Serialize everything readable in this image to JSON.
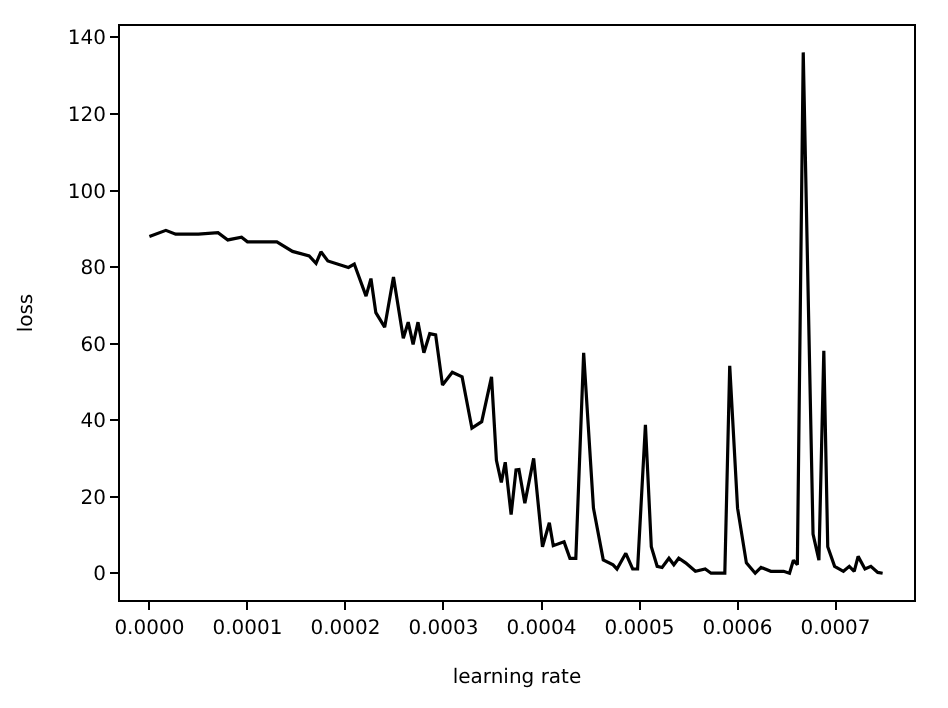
{
  "chart_data": {
    "type": "line",
    "xlabel": "learning rate",
    "ylabel": "loss",
    "x": [
      0.0,
      1.68e-05,
      2.68e-05,
      5e-05,
      7e-05,
      8e-05,
      9.4e-05,
      0.0001,
      0.00013,
      0.000146,
      0.000163,
      0.00017,
      0.000175,
      0.000182,
      0.000203,
      0.000209,
      0.000221,
      0.000226,
      0.000231,
      0.00024,
      0.000249,
      0.000259,
      0.000264,
      0.000269,
      0.000274,
      0.00028,
      0.000286,
      0.000292,
      0.000299,
      0.000309,
      0.000319,
      0.000329,
      0.000339,
      0.000349,
      0.000354,
      0.000359,
      0.000363,
      0.000369,
      0.000374,
      0.000377,
      0.000383,
      0.000392,
      0.000401,
      0.000408,
      0.000412,
      0.000423,
      0.000429,
      0.000435,
      0.000443,
      0.000453,
      0.000463,
      0.000473,
      0.000477,
      0.000486,
      0.000493,
      0.000498,
      0.000506,
      0.000512,
      0.000518,
      0.000523,
      0.00053,
      0.000535,
      0.00054,
      0.000547,
      0.000557,
      0.000567,
      0.000573,
      0.000587,
      0.000592,
      0.0006,
      0.000609,
      0.000618,
      0.000624,
      0.000634,
      0.000647,
      0.000653,
      0.000657,
      0.000661,
      0.000667,
      0.000677,
      0.000683,
      0.000688,
      0.000692,
      0.000699,
      0.000708,
      0.000714,
      0.000719,
      0.000723,
      0.00073,
      0.000736,
      0.000743,
      0.000748
    ],
    "series": [
      {
        "color": "#000000",
        "values": [
          88,
          89.6,
          88.6,
          88.6,
          89,
          87.1,
          87.8,
          86.6,
          86.6,
          84.1,
          82.9,
          81,
          84,
          81.6,
          79.9,
          80.8,
          72.4,
          77,
          68.1,
          64.3,
          77.4,
          61.4,
          65.6,
          59.8,
          65.6,
          57.6,
          62.6,
          62.3,
          49.2,
          52.5,
          51.3,
          37.9,
          39.6,
          51.3,
          29.5,
          23.7,
          29,
          15.3,
          27,
          27.1,
          18.3,
          30,
          6.9,
          13.2,
          7.2,
          8.2,
          3.9,
          3.9,
          57.6,
          17,
          3.5,
          2.2,
          1.1,
          5.2,
          1.1,
          1.1,
          38.8,
          6.9,
          1.8,
          1.5,
          3.9,
          2.2,
          3.9,
          2.7,
          0.5,
          1.1,
          0,
          0,
          54.2,
          17,
          2.7,
          0,
          1.5,
          0.5,
          0.5,
          0,
          3.4,
          2.2,
          136.1,
          10.2,
          3.4,
          58.1,
          6.9,
          1.8,
          0.5,
          1.8,
          0.5,
          4.4,
          1.1,
          1.8,
          0.2,
          0
        ]
      }
    ],
    "xlim": [
      -3e-05,
      0.00078
    ],
    "ylim": [
      -7,
      143
    ],
    "xticks": [
      {
        "value": 0,
        "label": "0.0000"
      },
      {
        "value": 0.0001,
        "label": "0.0001"
      },
      {
        "value": 0.0002,
        "label": "0.0002"
      },
      {
        "value": 0.0003,
        "label": "0.0003"
      },
      {
        "value": 0.0004,
        "label": "0.0004"
      },
      {
        "value": 0.0005,
        "label": "0.0005"
      },
      {
        "value": 0.0006,
        "label": "0.0006"
      },
      {
        "value": 0.0007,
        "label": "0.0007"
      }
    ],
    "yticks": [
      0,
      20,
      40,
      60,
      80,
      100,
      120,
      140
    ],
    "marker": "none",
    "line_style": "solid"
  }
}
